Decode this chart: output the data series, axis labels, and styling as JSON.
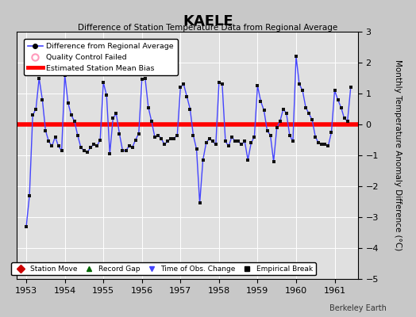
{
  "title": "KAELE",
  "subtitle": "Difference of Station Temperature Data from Regional Average",
  "ylabel": "Monthly Temperature Anomaly Difference (°C)",
  "ylim": [
    -5,
    3
  ],
  "yticks": [
    -5,
    -4,
    -3,
    -2,
    -1,
    0,
    1,
    2,
    3
  ],
  "xlim_start": 1952.75,
  "xlim_end": 1961.6,
  "bias_value": 0.0,
  "line_color": "#4444ff",
  "bias_color": "#ff0000",
  "marker_color": "#111111",
  "bg_color": "#e0e0e0",
  "fig_bg_color": "#c8c8c8",
  "watermark": "Berkeley Earth",
  "xtick_positions": [
    1953,
    1954,
    1955,
    1956,
    1957,
    1958,
    1959,
    1960,
    1961
  ],
  "data_x": [
    1953.0,
    1953.083,
    1953.167,
    1953.25,
    1953.333,
    1953.417,
    1953.5,
    1953.583,
    1953.667,
    1953.75,
    1953.833,
    1953.917,
    1954.0,
    1954.083,
    1954.167,
    1954.25,
    1954.333,
    1954.417,
    1954.5,
    1954.583,
    1954.667,
    1954.75,
    1954.833,
    1954.917,
    1955.0,
    1955.083,
    1955.167,
    1955.25,
    1955.333,
    1955.417,
    1955.5,
    1955.583,
    1955.667,
    1955.75,
    1955.833,
    1955.917,
    1956.0,
    1956.083,
    1956.167,
    1956.25,
    1956.333,
    1956.417,
    1956.5,
    1956.583,
    1956.667,
    1956.75,
    1956.833,
    1956.917,
    1957.0,
    1957.083,
    1957.167,
    1957.25,
    1957.333,
    1957.417,
    1957.5,
    1957.583,
    1957.667,
    1957.75,
    1957.833,
    1957.917,
    1958.0,
    1958.083,
    1958.167,
    1958.25,
    1958.333,
    1958.417,
    1958.5,
    1958.583,
    1958.667,
    1958.75,
    1958.833,
    1958.917,
    1959.0,
    1959.083,
    1959.167,
    1959.25,
    1959.333,
    1959.417,
    1959.5,
    1959.583,
    1959.667,
    1959.75,
    1959.833,
    1959.917,
    1960.0,
    1960.083,
    1960.167,
    1960.25,
    1960.333,
    1960.417,
    1960.5,
    1960.583,
    1960.667,
    1960.75,
    1960.833,
    1960.917,
    1961.0,
    1961.083,
    1961.167,
    1961.25,
    1961.333,
    1961.417
  ],
  "data_y": [
    -3.3,
    -2.3,
    0.3,
    0.5,
    1.5,
    0.8,
    -0.2,
    -0.55,
    -0.7,
    -0.4,
    -0.7,
    -0.85,
    1.6,
    0.7,
    0.3,
    0.1,
    -0.35,
    -0.75,
    -0.85,
    -0.9,
    -0.75,
    -0.65,
    -0.7,
    -0.5,
    1.35,
    0.95,
    -0.95,
    0.2,
    0.35,
    -0.3,
    -0.85,
    -0.85,
    -0.7,
    -0.75,
    -0.5,
    -0.3,
    1.45,
    1.5,
    0.55,
    0.1,
    -0.4,
    -0.35,
    -0.45,
    -0.65,
    -0.55,
    -0.45,
    -0.45,
    -0.35,
    1.2,
    1.3,
    0.9,
    0.5,
    -0.35,
    -0.8,
    -2.55,
    -1.15,
    -0.6,
    -0.45,
    -0.55,
    -0.65,
    1.35,
    1.3,
    -0.55,
    -0.7,
    -0.4,
    -0.55,
    -0.55,
    -0.65,
    -0.55,
    -1.15,
    -0.6,
    -0.4,
    1.25,
    0.75,
    0.45,
    -0.2,
    -0.35,
    -1.2,
    -0.1,
    0.1,
    0.5,
    0.35,
    -0.35,
    -0.55,
    2.2,
    1.3,
    1.1,
    0.55,
    0.35,
    0.15,
    -0.4,
    -0.6,
    -0.65,
    -0.65,
    -0.7,
    -0.25,
    1.1,
    0.8,
    0.55,
    0.2,
    0.1,
    1.2
  ]
}
